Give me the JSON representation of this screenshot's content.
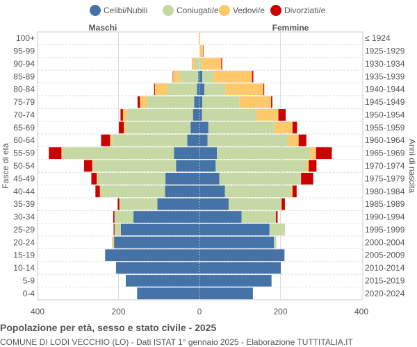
{
  "chart_data": {
    "type": "bar",
    "orientation": "horizontal-pyramid",
    "title": "Popolazione per età, sesso e stato civile - 2025",
    "subtitle": "COMUNE DI LODI VECCHIO (LO) - Dati ISTAT 1° gennaio 2025 - Elaborazione TUTTITALIA.IT",
    "ylabel_left": "Fasce di età",
    "ylabel_right": "Anni di nascita",
    "side_labels": {
      "left": "Maschi",
      "right": "Femmine"
    },
    "xlim": [
      -400,
      400
    ],
    "xticks": [
      "400",
      "200",
      "0",
      "200",
      "400"
    ],
    "xtick_values": [
      -400,
      -200,
      0,
      200,
      400
    ],
    "grid": true,
    "legend_position": "top",
    "series_names": [
      "Celibi/Nubili",
      "Coniugati/e",
      "Vedovi/e",
      "Divorziati/e"
    ],
    "colors": [
      "#4573a7",
      "#c6d9a5",
      "#fdc96a",
      "#cc0000"
    ],
    "categories": [
      "100+",
      "95-99",
      "90-94",
      "85-89",
      "80-84",
      "75-79",
      "70-74",
      "65-69",
      "60-64",
      "55-59",
      "50-54",
      "45-49",
      "40-44",
      "35-39",
      "30-34",
      "25-29",
      "20-24",
      "15-19",
      "10-14",
      "5-9",
      "0-4"
    ],
    "birth_years": [
      "≤ 1924",
      "1925-1929",
      "1930-1934",
      "1935-1939",
      "1940-1944",
      "1945-1949",
      "1950-1954",
      "1955-1959",
      "1960-1964",
      "1965-1969",
      "1970-1974",
      "1975-1979",
      "1980-1984",
      "1985-1989",
      "1990-1994",
      "1995-1999",
      "2000-2004",
      "2005-2009",
      "2010-2014",
      "2015-2019",
      "2020-2024"
    ],
    "males": {
      "Celibi/Nubili": [
        0,
        0,
        0,
        3,
        6,
        13,
        16,
        22,
        30,
        63,
        58,
        84,
        85,
        104,
        163,
        194,
        211,
        233,
        206,
        182,
        154
      ],
      "Coniugati/e": [
        1,
        0,
        12,
        47,
        73,
        117,
        164,
        160,
        186,
        275,
        205,
        168,
        159,
        93,
        47,
        16,
        2,
        0,
        0,
        0,
        0
      ],
      "Vedovi/e": [
        1,
        0,
        7,
        15,
        31,
        17,
        9,
        5,
        5,
        3,
        2,
        2,
        2,
        1,
        0,
        0,
        3,
        0,
        0,
        0,
        0
      ],
      "Divorziati/e": [
        0,
        0,
        0,
        1,
        2,
        6,
        6,
        12,
        22,
        31,
        20,
        13,
        11,
        4,
        3,
        2,
        0,
        0,
        0,
        0,
        0
      ]
    },
    "females": {
      "Celibi/Nubili": [
        0,
        0,
        0,
        7,
        12,
        7,
        6,
        22,
        20,
        43,
        40,
        49,
        63,
        72,
        104,
        173,
        184,
        210,
        201,
        178,
        132
      ],
      "Coniugati/e": [
        0,
        0,
        4,
        27,
        52,
        92,
        135,
        163,
        199,
        231,
        223,
        201,
        163,
        130,
        85,
        38,
        6,
        0,
        0,
        0,
        0
      ],
      "Vedovi/e": [
        2,
        9,
        50,
        96,
        94,
        78,
        54,
        45,
        26,
        14,
        7,
        1,
        4,
        1,
        0,
        0,
        0,
        0,
        0,
        0,
        0
      ],
      "Divorziati/e": [
        0,
        1,
        2,
        3,
        2,
        3,
        18,
        11,
        19,
        39,
        19,
        30,
        10,
        8,
        4,
        0,
        0,
        0,
        0,
        0,
        0
      ]
    }
  }
}
